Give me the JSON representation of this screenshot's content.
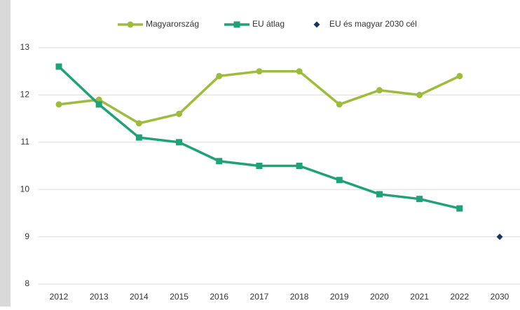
{
  "chart_data": {
    "type": "line",
    "categories": [
      "2012",
      "2013",
      "2014",
      "2015",
      "2016",
      "2017",
      "2018",
      "2019",
      "2020",
      "2021",
      "2022",
      "2030"
    ],
    "series": [
      {
        "name": "Magyarország",
        "color": "#9dbb3e",
        "marker": "circle",
        "values": [
          11.8,
          11.9,
          11.4,
          11.6,
          12.4,
          12.5,
          12.5,
          11.8,
          12.1,
          12.0,
          12.4,
          null
        ]
      },
      {
        "name": "EU átlag",
        "color": "#22a07a",
        "marker": "square",
        "values": [
          12.6,
          11.8,
          11.1,
          11.0,
          10.6,
          10.5,
          10.5,
          10.2,
          9.9,
          9.8,
          9.6,
          null
        ]
      },
      {
        "name": "EU és magyar 2030 cél",
        "color": "#17375e",
        "marker": "diamond",
        "values": [
          null,
          null,
          null,
          null,
          null,
          null,
          null,
          null,
          null,
          null,
          null,
          9
        ]
      }
    ],
    "ylim": [
      8,
      13
    ],
    "yticks": [
      8,
      9,
      10,
      11,
      12,
      13
    ],
    "grid": true,
    "legend": "top"
  }
}
